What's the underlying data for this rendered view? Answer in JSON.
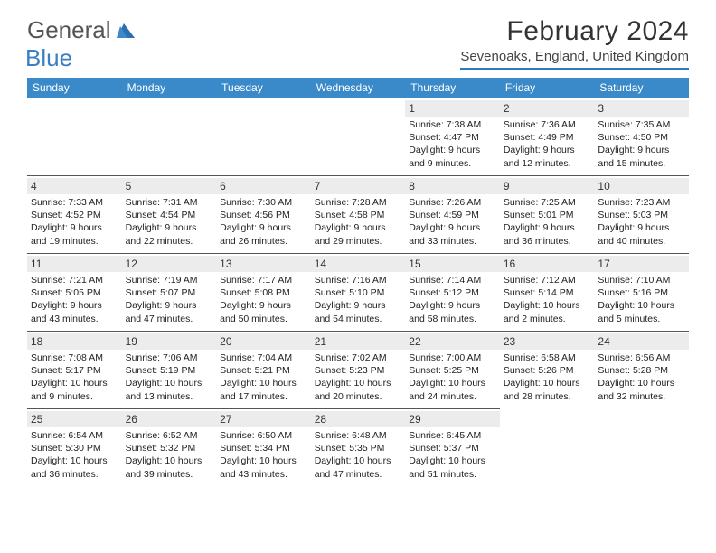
{
  "brand": {
    "general": "General",
    "blue": "Blue"
  },
  "colors": {
    "header_bar": "#3a8ac9",
    "divider": "#2f7abf",
    "date_bg": "#ececec",
    "text": "#333333",
    "brand_blue": "#3a7fc4",
    "brand_gray": "#555555"
  },
  "title": "February 2024",
  "location": "Sevenoaks, England, United Kingdom",
  "weekdays": [
    "Sunday",
    "Monday",
    "Tuesday",
    "Wednesday",
    "Thursday",
    "Friday",
    "Saturday"
  ],
  "leading_blanks": 4,
  "days": [
    {
      "n": "1",
      "sr": "Sunrise: 7:38 AM",
      "ss": "Sunset: 4:47 PM",
      "d1": "Daylight: 9 hours",
      "d2": "and 9 minutes."
    },
    {
      "n": "2",
      "sr": "Sunrise: 7:36 AM",
      "ss": "Sunset: 4:49 PM",
      "d1": "Daylight: 9 hours",
      "d2": "and 12 minutes."
    },
    {
      "n": "3",
      "sr": "Sunrise: 7:35 AM",
      "ss": "Sunset: 4:50 PM",
      "d1": "Daylight: 9 hours",
      "d2": "and 15 minutes."
    },
    {
      "n": "4",
      "sr": "Sunrise: 7:33 AM",
      "ss": "Sunset: 4:52 PM",
      "d1": "Daylight: 9 hours",
      "d2": "and 19 minutes."
    },
    {
      "n": "5",
      "sr": "Sunrise: 7:31 AM",
      "ss": "Sunset: 4:54 PM",
      "d1": "Daylight: 9 hours",
      "d2": "and 22 minutes."
    },
    {
      "n": "6",
      "sr": "Sunrise: 7:30 AM",
      "ss": "Sunset: 4:56 PM",
      "d1": "Daylight: 9 hours",
      "d2": "and 26 minutes."
    },
    {
      "n": "7",
      "sr": "Sunrise: 7:28 AM",
      "ss": "Sunset: 4:58 PM",
      "d1": "Daylight: 9 hours",
      "d2": "and 29 minutes."
    },
    {
      "n": "8",
      "sr": "Sunrise: 7:26 AM",
      "ss": "Sunset: 4:59 PM",
      "d1": "Daylight: 9 hours",
      "d2": "and 33 minutes."
    },
    {
      "n": "9",
      "sr": "Sunrise: 7:25 AM",
      "ss": "Sunset: 5:01 PM",
      "d1": "Daylight: 9 hours",
      "d2": "and 36 minutes."
    },
    {
      "n": "10",
      "sr": "Sunrise: 7:23 AM",
      "ss": "Sunset: 5:03 PM",
      "d1": "Daylight: 9 hours",
      "d2": "and 40 minutes."
    },
    {
      "n": "11",
      "sr": "Sunrise: 7:21 AM",
      "ss": "Sunset: 5:05 PM",
      "d1": "Daylight: 9 hours",
      "d2": "and 43 minutes."
    },
    {
      "n": "12",
      "sr": "Sunrise: 7:19 AM",
      "ss": "Sunset: 5:07 PM",
      "d1": "Daylight: 9 hours",
      "d2": "and 47 minutes."
    },
    {
      "n": "13",
      "sr": "Sunrise: 7:17 AM",
      "ss": "Sunset: 5:08 PM",
      "d1": "Daylight: 9 hours",
      "d2": "and 50 minutes."
    },
    {
      "n": "14",
      "sr": "Sunrise: 7:16 AM",
      "ss": "Sunset: 5:10 PM",
      "d1": "Daylight: 9 hours",
      "d2": "and 54 minutes."
    },
    {
      "n": "15",
      "sr": "Sunrise: 7:14 AM",
      "ss": "Sunset: 5:12 PM",
      "d1": "Daylight: 9 hours",
      "d2": "and 58 minutes."
    },
    {
      "n": "16",
      "sr": "Sunrise: 7:12 AM",
      "ss": "Sunset: 5:14 PM",
      "d1": "Daylight: 10 hours",
      "d2": "and 2 minutes."
    },
    {
      "n": "17",
      "sr": "Sunrise: 7:10 AM",
      "ss": "Sunset: 5:16 PM",
      "d1": "Daylight: 10 hours",
      "d2": "and 5 minutes."
    },
    {
      "n": "18",
      "sr": "Sunrise: 7:08 AM",
      "ss": "Sunset: 5:17 PM",
      "d1": "Daylight: 10 hours",
      "d2": "and 9 minutes."
    },
    {
      "n": "19",
      "sr": "Sunrise: 7:06 AM",
      "ss": "Sunset: 5:19 PM",
      "d1": "Daylight: 10 hours",
      "d2": "and 13 minutes."
    },
    {
      "n": "20",
      "sr": "Sunrise: 7:04 AM",
      "ss": "Sunset: 5:21 PM",
      "d1": "Daylight: 10 hours",
      "d2": "and 17 minutes."
    },
    {
      "n": "21",
      "sr": "Sunrise: 7:02 AM",
      "ss": "Sunset: 5:23 PM",
      "d1": "Daylight: 10 hours",
      "d2": "and 20 minutes."
    },
    {
      "n": "22",
      "sr": "Sunrise: 7:00 AM",
      "ss": "Sunset: 5:25 PM",
      "d1": "Daylight: 10 hours",
      "d2": "and 24 minutes."
    },
    {
      "n": "23",
      "sr": "Sunrise: 6:58 AM",
      "ss": "Sunset: 5:26 PM",
      "d1": "Daylight: 10 hours",
      "d2": "and 28 minutes."
    },
    {
      "n": "24",
      "sr": "Sunrise: 6:56 AM",
      "ss": "Sunset: 5:28 PM",
      "d1": "Daylight: 10 hours",
      "d2": "and 32 minutes."
    },
    {
      "n": "25",
      "sr": "Sunrise: 6:54 AM",
      "ss": "Sunset: 5:30 PM",
      "d1": "Daylight: 10 hours",
      "d2": "and 36 minutes."
    },
    {
      "n": "26",
      "sr": "Sunrise: 6:52 AM",
      "ss": "Sunset: 5:32 PM",
      "d1": "Daylight: 10 hours",
      "d2": "and 39 minutes."
    },
    {
      "n": "27",
      "sr": "Sunrise: 6:50 AM",
      "ss": "Sunset: 5:34 PM",
      "d1": "Daylight: 10 hours",
      "d2": "and 43 minutes."
    },
    {
      "n": "28",
      "sr": "Sunrise: 6:48 AM",
      "ss": "Sunset: 5:35 PM",
      "d1": "Daylight: 10 hours",
      "d2": "and 47 minutes."
    },
    {
      "n": "29",
      "sr": "Sunrise: 6:45 AM",
      "ss": "Sunset: 5:37 PM",
      "d1": "Daylight: 10 hours",
      "d2": "and 51 minutes."
    }
  ]
}
